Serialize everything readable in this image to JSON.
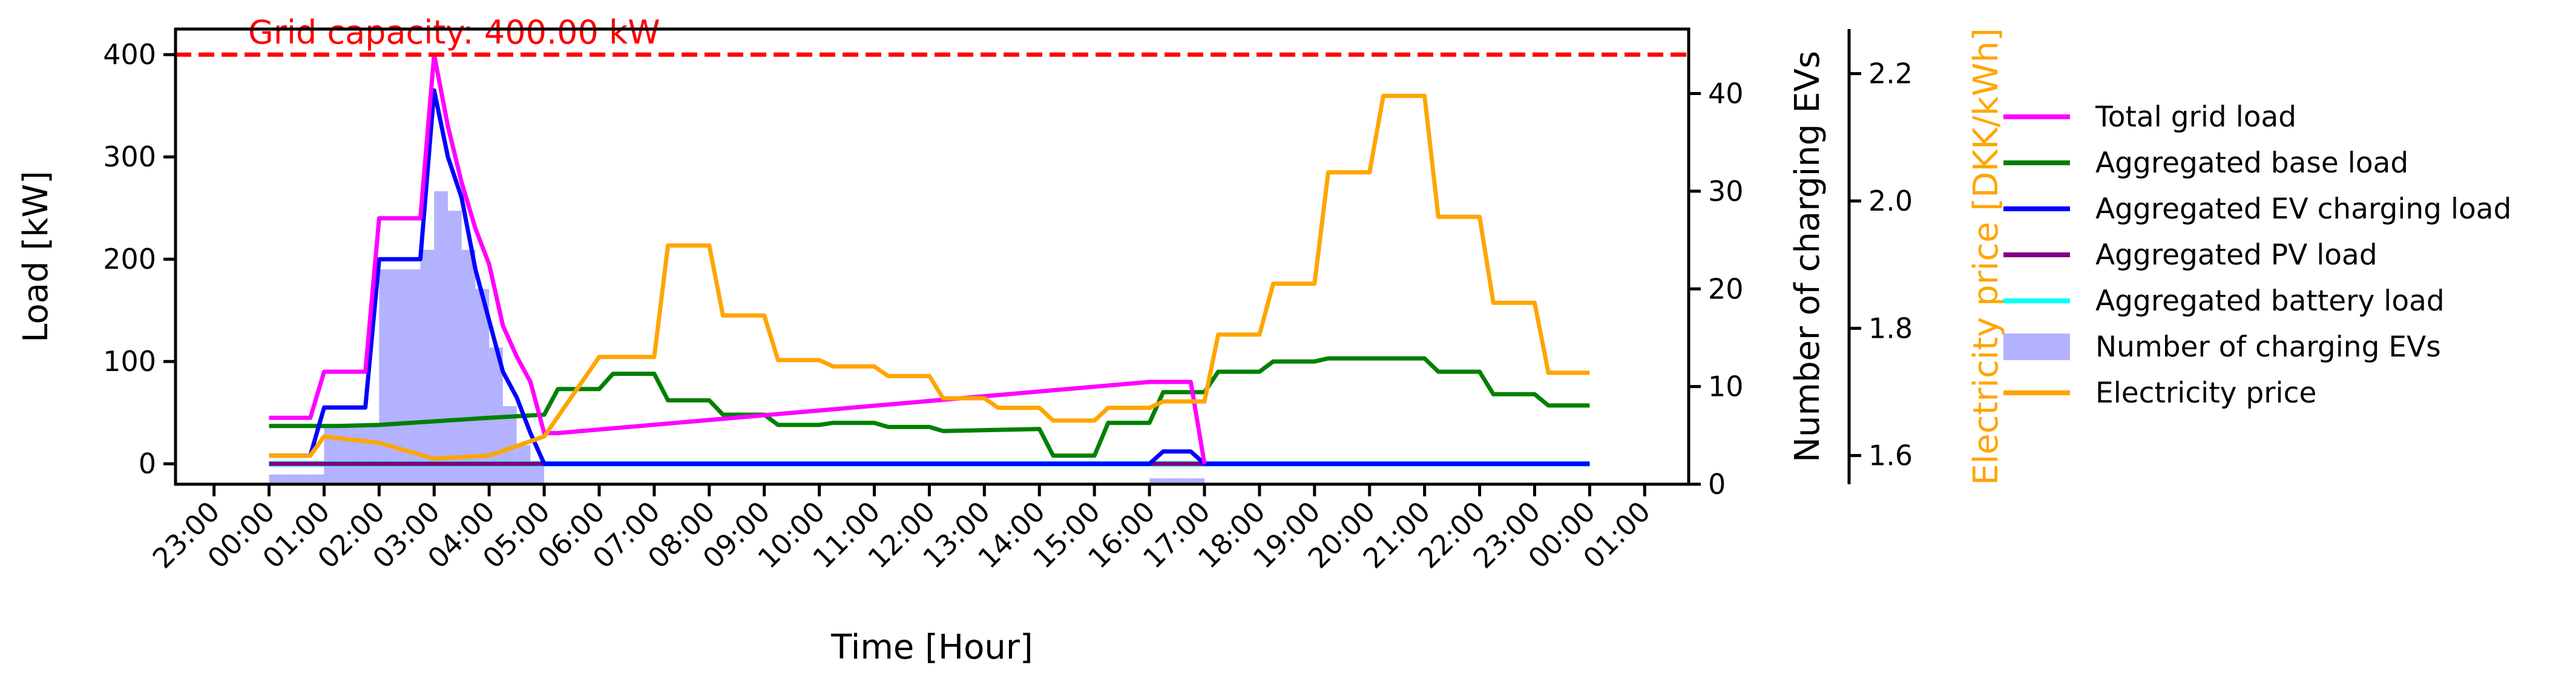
{
  "chart_data": {
    "type": "line",
    "title": "",
    "annotation": "Grid capacity: 400.00 kW",
    "xlabel": "Time [Hour]",
    "x_ticks": [
      "23:00",
      "00:00",
      "01:00",
      "02:00",
      "03:00",
      "04:00",
      "05:00",
      "06:00",
      "07:00",
      "08:00",
      "09:00",
      "10:00",
      "11:00",
      "12:00",
      "13:00",
      "14:00",
      "15:00",
      "16:00",
      "17:00",
      "18:00",
      "19:00",
      "20:00",
      "21:00",
      "22:00",
      "23:00",
      "00:00",
      "01:00"
    ],
    "x_range_hours": [
      -1.7,
      25.8
    ],
    "left_axis": {
      "label": "Load [kW]",
      "ylim": [
        -20,
        425
      ],
      "ticks": [
        0,
        100,
        200,
        300,
        400
      ]
    },
    "right_axis_1": {
      "label": "Number of charging EVs",
      "ylim": [
        0,
        46.6
      ],
      "ticks": [
        0,
        10,
        20,
        30,
        40
      ]
    },
    "right_axis_2": {
      "label": "Electricity price [DKK/kWh]",
      "ylim": [
        1.555,
        2.27
      ],
      "ticks": [
        "1.6",
        "1.8",
        "2.0",
        "2.2"
      ]
    },
    "grid": false,
    "legend_position": "right",
    "capacity_line": {
      "value": 400,
      "color": "#ff0000",
      "style": "dashed"
    },
    "series": [
      {
        "name": "Total grid load",
        "axis": "left",
        "color": "#ff00ff",
        "points": [
          [
            0,
            45
          ],
          [
            0.75,
            45
          ],
          [
            1,
            90
          ],
          [
            1.75,
            90
          ],
          [
            2,
            240
          ],
          [
            2.75,
            240
          ],
          [
            3,
            400
          ],
          [
            3.25,
            330
          ],
          [
            3.5,
            275
          ],
          [
            3.75,
            230
          ],
          [
            4,
            195
          ],
          [
            4.25,
            135
          ],
          [
            4.5,
            105
          ],
          [
            4.75,
            80
          ],
          [
            5,
            30
          ],
          [
            5.25,
            30
          ],
          [
            16,
            80
          ],
          [
            16.75,
            80
          ],
          [
            17,
            0
          ]
        ]
      },
      {
        "name": "Aggregated base load",
        "axis": "left",
        "color": "#008000",
        "points": [
          [
            0,
            37
          ],
          [
            1,
            37
          ],
          [
            1.25,
            37
          ],
          [
            2,
            38
          ],
          [
            4,
            45
          ],
          [
            5,
            48
          ],
          [
            5.25,
            73
          ],
          [
            6,
            73
          ],
          [
            6.25,
            88
          ],
          [
            7,
            88
          ],
          [
            7.25,
            62
          ],
          [
            8,
            62
          ],
          [
            8.25,
            48
          ],
          [
            9,
            48
          ],
          [
            9.25,
            38
          ],
          [
            10,
            38
          ],
          [
            10.25,
            40
          ],
          [
            11,
            40
          ],
          [
            11.25,
            36
          ],
          [
            12,
            36
          ],
          [
            12.25,
            32
          ],
          [
            14,
            34
          ],
          [
            14.25,
            8
          ],
          [
            15,
            8
          ],
          [
            15.25,
            40
          ],
          [
            16,
            40
          ],
          [
            16.25,
            70
          ],
          [
            17,
            70
          ],
          [
            17.25,
            90
          ],
          [
            18,
            90
          ],
          [
            18.25,
            100
          ],
          [
            19,
            100
          ],
          [
            19.25,
            103
          ],
          [
            21,
            103
          ],
          [
            21.25,
            90
          ],
          [
            22,
            90
          ],
          [
            22.25,
            68
          ],
          [
            23,
            68
          ],
          [
            23.25,
            57
          ],
          [
            24,
            57
          ]
        ]
      },
      {
        "name": "Aggregated EV charging load",
        "axis": "left",
        "color": "#0000ff",
        "points": [
          [
            0,
            8
          ],
          [
            0.75,
            8
          ],
          [
            1,
            55
          ],
          [
            1.75,
            55
          ],
          [
            2,
            200
          ],
          [
            2.75,
            200
          ],
          [
            3,
            365
          ],
          [
            3.25,
            300
          ],
          [
            3.5,
            260
          ],
          [
            3.75,
            190
          ],
          [
            4,
            140
          ],
          [
            4.25,
            90
          ],
          [
            4.5,
            65
          ],
          [
            4.75,
            30
          ],
          [
            5,
            0
          ],
          [
            16,
            0
          ],
          [
            16.25,
            12
          ],
          [
            16.75,
            12
          ],
          [
            17,
            0
          ],
          [
            24,
            0
          ]
        ]
      },
      {
        "name": "Aggregated PV load",
        "axis": "left",
        "color": "#800080",
        "points": [
          [
            0,
            0
          ],
          [
            24,
            0
          ]
        ]
      },
      {
        "name": "Aggregated battery load",
        "axis": "left",
        "color": "#00ffff",
        "points": [
          [
            0,
            0
          ],
          [
            24,
            0
          ]
        ]
      },
      {
        "name": "Number of charging EVs",
        "axis": "right_1",
        "type": "bar",
        "color": "#b2b2ff",
        "bar_width_hours": 0.25,
        "points": [
          [
            0,
            1
          ],
          [
            0.25,
            1
          ],
          [
            0.5,
            1
          ],
          [
            0.75,
            1
          ],
          [
            1,
            6
          ],
          [
            1.25,
            6
          ],
          [
            1.5,
            6
          ],
          [
            1.75,
            6
          ],
          [
            2,
            22
          ],
          [
            2.25,
            22
          ],
          [
            2.5,
            22
          ],
          [
            2.75,
            24
          ],
          [
            3,
            30
          ],
          [
            3.25,
            28
          ],
          [
            3.5,
            24
          ],
          [
            3.75,
            20
          ],
          [
            4,
            14
          ],
          [
            4.25,
            8
          ],
          [
            4.5,
            4
          ],
          [
            4.75,
            2
          ],
          [
            16,
            0.6
          ],
          [
            16.25,
            0.6
          ],
          [
            16.5,
            0.6
          ],
          [
            16.75,
            0.6
          ]
        ]
      },
      {
        "name": "Electricity price",
        "axis": "right_2",
        "color": "#ffa500",
        "points": [
          [
            0,
            1.6
          ],
          [
            0.75,
            1.6
          ],
          [
            1,
            1.63
          ],
          [
            2,
            1.62
          ],
          [
            3,
            1.595
          ],
          [
            4,
            1.6
          ],
          [
            5,
            1.63
          ],
          [
            6,
            1.755
          ],
          [
            7,
            1.755
          ],
          [
            7.25,
            1.93
          ],
          [
            8,
            1.93
          ],
          [
            8.25,
            1.82
          ],
          [
            9,
            1.82
          ],
          [
            9.25,
            1.75
          ],
          [
            10,
            1.75
          ],
          [
            10.25,
            1.74
          ],
          [
            11,
            1.74
          ],
          [
            11.25,
            1.725
          ],
          [
            12,
            1.725
          ],
          [
            12.25,
            1.69
          ],
          [
            13,
            1.69
          ],
          [
            13.25,
            1.675
          ],
          [
            14,
            1.675
          ],
          [
            14.25,
            1.655
          ],
          [
            15,
            1.655
          ],
          [
            15.25,
            1.675
          ],
          [
            16,
            1.675
          ],
          [
            16.25,
            1.685
          ],
          [
            17,
            1.685
          ],
          [
            17.25,
            1.79
          ],
          [
            18,
            1.79
          ],
          [
            18.25,
            1.87
          ],
          [
            19,
            1.87
          ],
          [
            19.25,
            2.045
          ],
          [
            20,
            2.045
          ],
          [
            20.25,
            2.165
          ],
          [
            21,
            2.165
          ],
          [
            21.25,
            1.975
          ],
          [
            22,
            1.975
          ],
          [
            22.25,
            1.84
          ],
          [
            23,
            1.84
          ],
          [
            23.25,
            1.73
          ],
          [
            24,
            1.73
          ]
        ]
      }
    ]
  }
}
